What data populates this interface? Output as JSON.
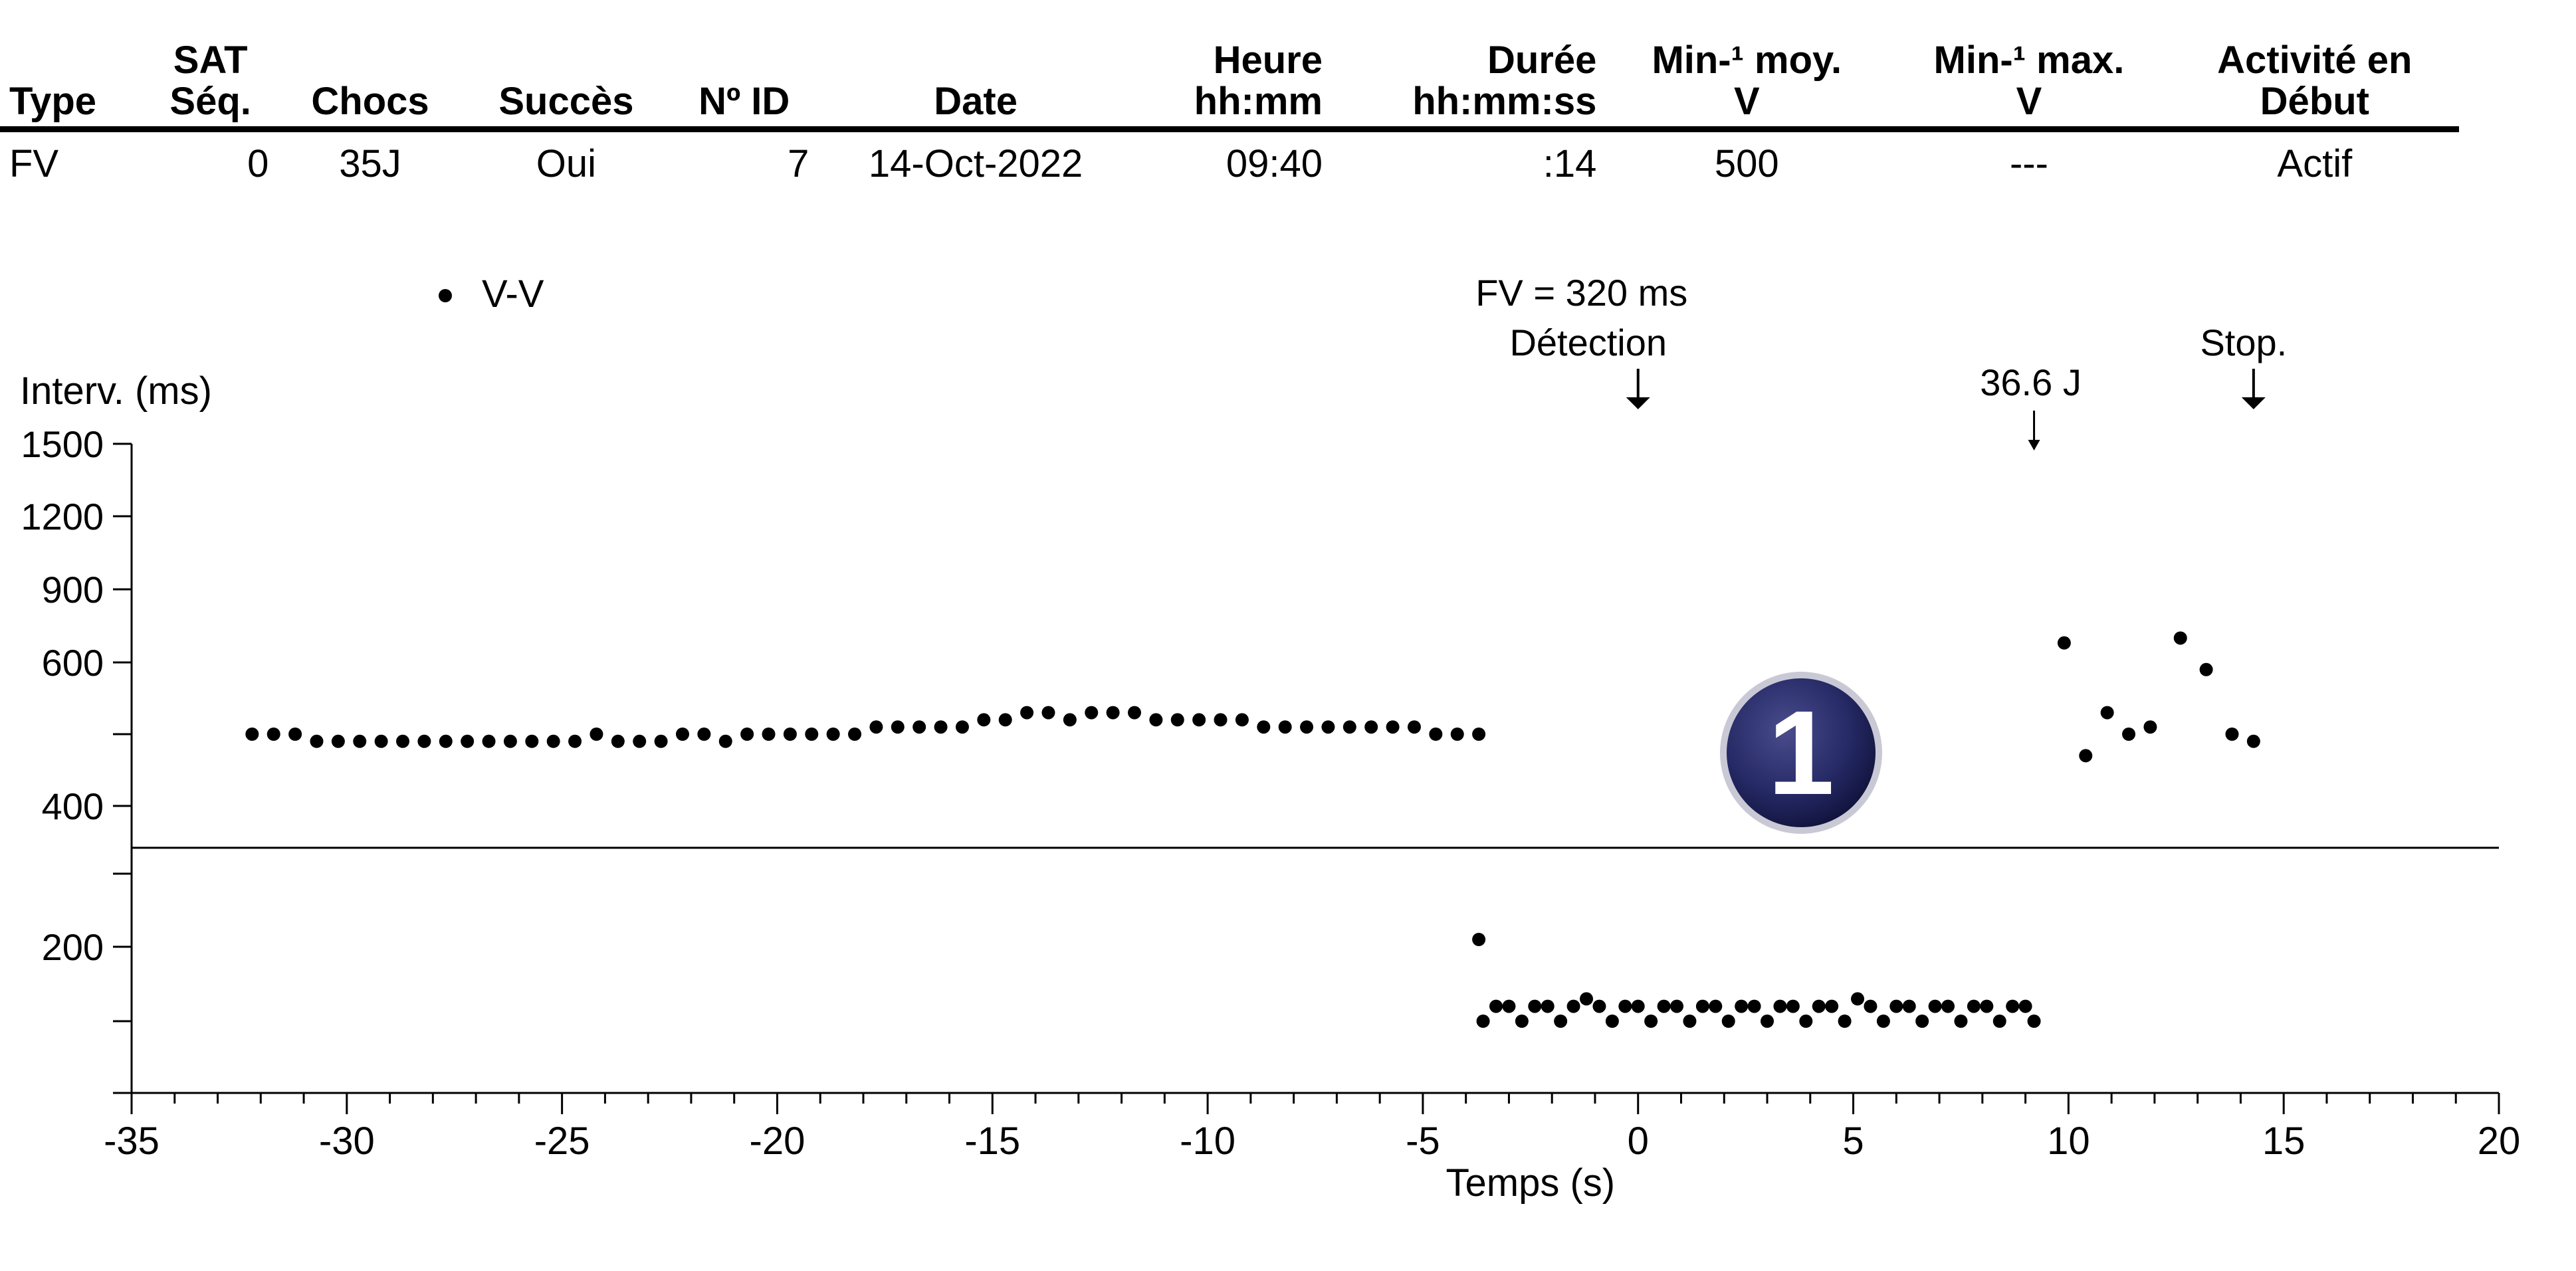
{
  "table": {
    "headers": [
      {
        "line1": "",
        "line2": "Type",
        "align": "l"
      },
      {
        "line1": "SAT",
        "line2": "Séq.",
        "align": "c"
      },
      {
        "line1": "",
        "line2": "Chocs",
        "align": "c"
      },
      {
        "line1": "",
        "line2": "Succès",
        "align": "c"
      },
      {
        "line1": "",
        "line2": "Nº ID",
        "align": "c"
      },
      {
        "line1": "",
        "line2": "Date",
        "align": "c"
      },
      {
        "line1": "Heure",
        "line2": "hh:mm",
        "align": "r"
      },
      {
        "line1": "Durée",
        "line2": "hh:mm:ss",
        "align": "r"
      },
      {
        "line1": "Min-¹ moy.",
        "line2": "V",
        "align": "c"
      },
      {
        "line1": "Min-¹ max.",
        "line2": "V",
        "align": "c"
      },
      {
        "line1": "Activité en",
        "line2": "Début",
        "align": "c"
      }
    ],
    "rows": [
      [
        {
          "value": "FV",
          "align": "l"
        },
        {
          "value": "0",
          "align": "r"
        },
        {
          "value": "35J",
          "align": "c"
        },
        {
          "value": "Oui",
          "align": "c"
        },
        {
          "value": "7",
          "align": "r"
        },
        {
          "value": "14-Oct-2022",
          "align": "c"
        },
        {
          "value": "09:40",
          "align": "r"
        },
        {
          "value": ":14",
          "align": "r"
        },
        {
          "value": "500",
          "align": "c"
        },
        {
          "value": "---",
          "align": "c"
        },
        {
          "value": "Actif",
          "align": "c"
        }
      ]
    ]
  },
  "chart_data": {
    "type": "scatter",
    "title": "",
    "xlabel": "Temps (s)",
    "ylabel": "Interv. (ms)",
    "xlim": [
      -35,
      20
    ],
    "x_ticks": [
      -35,
      -30,
      -25,
      -20,
      -15,
      -10,
      -5,
      0,
      5,
      10,
      15,
      20
    ],
    "x_tick_labels": [
      "-35",
      "-30",
      "-25",
      "-20",
      "-15",
      "-10",
      "-5",
      "0",
      "5",
      "10",
      "15",
      "20"
    ],
    "y_scale": "piecewise",
    "y_ticks": [
      {
        "value": 1500,
        "label": "1500"
      },
      {
        "value": 1200,
        "label": "1200"
      },
      {
        "value": 900,
        "label": "900"
      },
      {
        "value": 600,
        "label": "600"
      },
      {
        "value": 500,
        "label": ""
      },
      {
        "value": 400,
        "label": "400"
      },
      {
        "value": 300,
        "label": ""
      },
      {
        "value": 200,
        "label": "200"
      },
      {
        "value": 150,
        "label": ""
      },
      {
        "value": 100,
        "label": ""
      }
    ],
    "detection_threshold_ms": 320,
    "grid": false,
    "legend": {
      "position": "top-left",
      "entries": [
        "V-V"
      ]
    },
    "series": [
      {
        "name": "V-V",
        "marker": "dot",
        "color": "#000000",
        "points": [
          [
            -32.2,
            500
          ],
          [
            -31.7,
            500
          ],
          [
            -31.2,
            500
          ],
          [
            -30.7,
            490
          ],
          [
            -30.2,
            490
          ],
          [
            -29.7,
            490
          ],
          [
            -29.2,
            490
          ],
          [
            -28.7,
            490
          ],
          [
            -28.2,
            490
          ],
          [
            -27.7,
            490
          ],
          [
            -27.2,
            490
          ],
          [
            -26.7,
            490
          ],
          [
            -26.2,
            490
          ],
          [
            -25.7,
            490
          ],
          [
            -25.2,
            490
          ],
          [
            -24.7,
            490
          ],
          [
            -24.2,
            500
          ],
          [
            -23.7,
            490
          ],
          [
            -23.2,
            490
          ],
          [
            -22.7,
            490
          ],
          [
            -22.2,
            500
          ],
          [
            -21.7,
            500
          ],
          [
            -21.2,
            490
          ],
          [
            -20.7,
            500
          ],
          [
            -20.2,
            500
          ],
          [
            -19.7,
            500
          ],
          [
            -19.2,
            500
          ],
          [
            -18.7,
            500
          ],
          [
            -18.2,
            500
          ],
          [
            -17.7,
            510
          ],
          [
            -17.2,
            510
          ],
          [
            -16.7,
            510
          ],
          [
            -16.2,
            510
          ],
          [
            -15.7,
            510
          ],
          [
            -15.2,
            520
          ],
          [
            -14.7,
            520
          ],
          [
            -14.2,
            530
          ],
          [
            -13.7,
            530
          ],
          [
            -13.2,
            520
          ],
          [
            -12.7,
            530
          ],
          [
            -12.2,
            530
          ],
          [
            -11.7,
            530
          ],
          [
            -11.2,
            520
          ],
          [
            -10.7,
            520
          ],
          [
            -10.2,
            520
          ],
          [
            -9.7,
            520
          ],
          [
            -9.2,
            520
          ],
          [
            -8.7,
            510
          ],
          [
            -8.2,
            510
          ],
          [
            -7.7,
            510
          ],
          [
            -7.2,
            510
          ],
          [
            -6.7,
            510
          ],
          [
            -6.2,
            510
          ],
          [
            -5.7,
            510
          ],
          [
            -5.2,
            510
          ],
          [
            -4.7,
            500
          ],
          [
            -4.2,
            500
          ],
          [
            -3.7,
            500
          ],
          [
            -3.7,
            210
          ],
          [
            -3.6,
            150
          ],
          [
            -3.3,
            160
          ],
          [
            -3.0,
            160
          ],
          [
            -2.7,
            150
          ],
          [
            -2.4,
            160
          ],
          [
            -2.1,
            160
          ],
          [
            -1.8,
            150
          ],
          [
            -1.5,
            160
          ],
          [
            -1.2,
            165
          ],
          [
            -0.9,
            160
          ],
          [
            -0.6,
            150
          ],
          [
            -0.3,
            160
          ],
          [
            0.0,
            160
          ],
          [
            0.3,
            150
          ],
          [
            0.6,
            160
          ],
          [
            0.9,
            160
          ],
          [
            1.2,
            150
          ],
          [
            1.5,
            160
          ],
          [
            1.8,
            160
          ],
          [
            2.1,
            150
          ],
          [
            2.4,
            160
          ],
          [
            2.7,
            160
          ],
          [
            3.0,
            150
          ],
          [
            3.3,
            160
          ],
          [
            3.6,
            160
          ],
          [
            3.9,
            150
          ],
          [
            4.2,
            160
          ],
          [
            4.5,
            160
          ],
          [
            4.8,
            150
          ],
          [
            5.1,
            165
          ],
          [
            5.4,
            160
          ],
          [
            5.7,
            150
          ],
          [
            6.0,
            160
          ],
          [
            6.3,
            160
          ],
          [
            6.6,
            150
          ],
          [
            6.9,
            160
          ],
          [
            7.2,
            160
          ],
          [
            7.5,
            150
          ],
          [
            7.8,
            160
          ],
          [
            8.1,
            160
          ],
          [
            8.4,
            150
          ],
          [
            8.7,
            160
          ],
          [
            9.0,
            160
          ],
          [
            9.2,
            150
          ],
          [
            9.9,
            680
          ],
          [
            10.4,
            470
          ],
          [
            10.9,
            530
          ],
          [
            11.4,
            500
          ],
          [
            11.9,
            510
          ],
          [
            12.6,
            700
          ],
          [
            13.2,
            590
          ],
          [
            13.8,
            500
          ],
          [
            14.3,
            490
          ]
        ]
      }
    ],
    "annotations": [
      {
        "x": 0,
        "lines": [
          "FV = 320 ms",
          "Détection"
        ],
        "arrow": "down"
      },
      {
        "x": 9.2,
        "lines": [
          "36.6 J"
        ],
        "arrow": "thin-down"
      },
      {
        "x": 14.3,
        "lines": [
          "Stop."
        ],
        "arrow": "down"
      }
    ],
    "badge": "1"
  }
}
